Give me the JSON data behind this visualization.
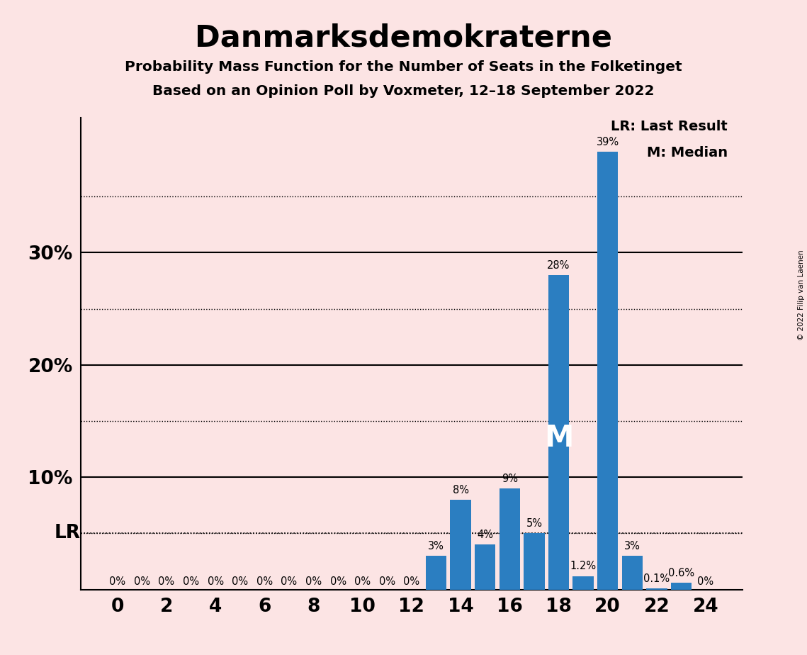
{
  "title": "Danmarksdemokraterne",
  "subtitle1": "Probability Mass Function for the Number of Seats in the Folketinget",
  "subtitle2": "Based on an Opinion Poll by Voxmeter, 12–18 September 2022",
  "copyright": "© 2022 Filip van Laenen",
  "background_color": "#fce4e4",
  "bar_color": "#2b7ec1",
  "seats": [
    0,
    1,
    2,
    3,
    4,
    5,
    6,
    7,
    8,
    9,
    10,
    11,
    12,
    13,
    14,
    15,
    16,
    17,
    18,
    19,
    20,
    21,
    22,
    23,
    24
  ],
  "probabilities": [
    0.0,
    0.0,
    0.0,
    0.0,
    0.0,
    0.0,
    0.0,
    0.0,
    0.0,
    0.0,
    0.0,
    0.0,
    0.0,
    3.0,
    8.0,
    4.0,
    9.0,
    5.0,
    28.0,
    1.2,
    39.0,
    3.0,
    0.1,
    0.6,
    0.0
  ],
  "bar_labels": [
    "0%",
    "0%",
    "0%",
    "0%",
    "0%",
    "0%",
    "0%",
    "0%",
    "0%",
    "0%",
    "0%",
    "0%",
    "0%",
    "3%",
    "8%",
    "4%",
    "9%",
    "5%",
    "28%",
    "1.2%",
    "39%",
    "3%",
    "0.1%",
    "0.6%",
    "0%"
  ],
  "ylim": [
    0,
    42
  ],
  "solid_yticks": [
    10,
    20,
    30
  ],
  "dotted_yticks": [
    5,
    15,
    25,
    35
  ],
  "lr_value": 5.0,
  "median_seat": 18,
  "legend_text1": "LR: Last Result",
  "legend_text2": "M: Median",
  "xlabel_ticks": [
    0,
    2,
    4,
    6,
    8,
    10,
    12,
    14,
    16,
    18,
    20,
    22,
    24
  ]
}
